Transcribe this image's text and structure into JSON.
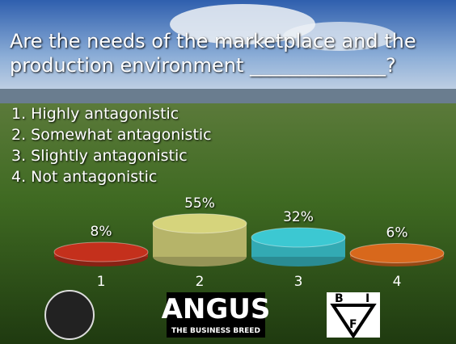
{
  "chart_data": {
    "type": "bar",
    "title": "Are the needs of the marketplace and the production environment ______________?",
    "options": [
      "1. Highly antagonistic",
      "2. Somewhat antagonistic",
      "3. Slightly antagonistic",
      "4. Not antagonistic"
    ],
    "categories": [
      "1",
      "2",
      "3",
      "4"
    ],
    "values": [
      8,
      55,
      32,
      6
    ],
    "value_labels": [
      "8%",
      "55%",
      "32%",
      "6%"
    ],
    "colors": [
      "#c4301c",
      "#d6d47c",
      "#3cc8d2",
      "#d8681c"
    ],
    "ylim": [
      0,
      100
    ]
  },
  "footer": {
    "angus": [
      "ANGUS",
      "THE BUSINESS BREED"
    ],
    "bif": [
      "B",
      "I",
      "F"
    ]
  }
}
